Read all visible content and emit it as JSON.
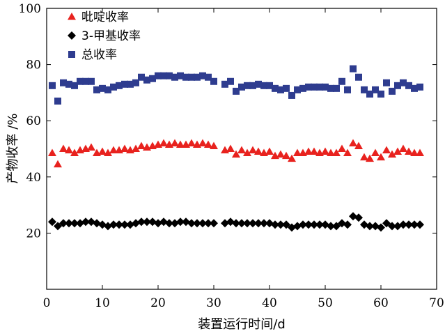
{
  "chart_data": {
    "type": "scatter",
    "xlabel": "装置运行时间/d",
    "ylabel": "产物收率 /%",
    "xlim": [
      0,
      70
    ],
    "ylim": [
      0,
      100
    ],
    "xticks": [
      0,
      10,
      20,
      30,
      40,
      50,
      60,
      70
    ],
    "yticks": [
      20,
      40,
      60,
      80,
      100
    ],
    "grid": false,
    "legend_position": "top-left",
    "series": [
      {
        "name": "吡啶收率",
        "marker": "triangle",
        "color": "#e8221e",
        "points": [
          [
            1,
            48.5
          ],
          [
            2,
            44.5
          ],
          [
            3,
            50
          ],
          [
            4,
            49.5
          ],
          [
            5,
            48.5
          ],
          [
            6,
            49.5
          ],
          [
            7,
            50
          ],
          [
            8,
            50.5
          ],
          [
            9,
            48.5
          ],
          [
            10,
            49
          ],
          [
            11,
            48.5
          ],
          [
            12,
            49.5
          ],
          [
            13,
            49.5
          ],
          [
            14,
            50
          ],
          [
            15,
            49.5
          ],
          [
            16,
            50
          ],
          [
            17,
            51
          ],
          [
            18,
            50.5
          ],
          [
            19,
            51
          ],
          [
            20,
            51.5
          ],
          [
            21,
            52
          ],
          [
            22,
            51.5
          ],
          [
            23,
            52
          ],
          [
            24,
            51.5
          ],
          [
            25,
            51.5
          ],
          [
            26,
            52
          ],
          [
            27,
            51.5
          ],
          [
            28,
            52
          ],
          [
            29,
            51.5
          ],
          [
            30,
            51
          ],
          [
            32,
            49.5
          ],
          [
            33,
            50
          ],
          [
            34,
            48
          ],
          [
            35,
            49.5
          ],
          [
            36,
            48.5
          ],
          [
            37,
            49.5
          ],
          [
            38,
            49
          ],
          [
            39,
            48.5
          ],
          [
            40,
            49
          ],
          [
            41,
            47.5
          ],
          [
            42,
            48
          ],
          [
            43,
            47.5
          ],
          [
            44,
            46.5
          ],
          [
            45,
            48.5
          ],
          [
            46,
            48.5
          ],
          [
            47,
            49
          ],
          [
            48,
            49
          ],
          [
            49,
            48.5
          ],
          [
            50,
            49
          ],
          [
            51,
            48.5
          ],
          [
            52,
            48.5
          ],
          [
            53,
            50
          ],
          [
            54,
            48.5
          ],
          [
            55,
            52
          ],
          [
            56,
            51
          ],
          [
            57,
            47
          ],
          [
            58,
            46.5
          ],
          [
            59,
            48.5
          ],
          [
            60,
            47
          ],
          [
            61,
            49.5
          ],
          [
            62,
            48
          ],
          [
            63,
            49
          ],
          [
            64,
            50
          ],
          [
            65,
            49
          ],
          [
            66,
            48.5
          ],
          [
            67,
            48.5
          ]
        ]
      },
      {
        "name": "3-甲基收率",
        "marker": "diamond",
        "color": "#000000",
        "points": [
          [
            1,
            24
          ],
          [
            2,
            22.5
          ],
          [
            3,
            23.5
          ],
          [
            4,
            23.5
          ],
          [
            5,
            23.5
          ],
          [
            6,
            23.5
          ],
          [
            7,
            24
          ],
          [
            8,
            24
          ],
          [
            9,
            23.5
          ],
          [
            10,
            23
          ],
          [
            11,
            22.5
          ],
          [
            12,
            23
          ],
          [
            13,
            23
          ],
          [
            14,
            23
          ],
          [
            15,
            23
          ],
          [
            16,
            23.5
          ],
          [
            17,
            24
          ],
          [
            18,
            24
          ],
          [
            19,
            24
          ],
          [
            20,
            23.5
          ],
          [
            21,
            24
          ],
          [
            22,
            23.5
          ],
          [
            23,
            23.5
          ],
          [
            24,
            24
          ],
          [
            25,
            24
          ],
          [
            26,
            23.5
          ],
          [
            27,
            23.5
          ],
          [
            28,
            23.5
          ],
          [
            29,
            23.5
          ],
          [
            30,
            23.5
          ],
          [
            32,
            23.5
          ],
          [
            33,
            24
          ],
          [
            34,
            23.5
          ],
          [
            35,
            23.5
          ],
          [
            36,
            23.5
          ],
          [
            37,
            23.5
          ],
          [
            38,
            23.5
          ],
          [
            39,
            23.5
          ],
          [
            40,
            23.5
          ],
          [
            41,
            23
          ],
          [
            42,
            23
          ],
          [
            43,
            23
          ],
          [
            44,
            22
          ],
          [
            45,
            22.5
          ],
          [
            46,
            23
          ],
          [
            47,
            23
          ],
          [
            48,
            23
          ],
          [
            49,
            23
          ],
          [
            50,
            23
          ],
          [
            51,
            22.5
          ],
          [
            52,
            22.5
          ],
          [
            53,
            23.5
          ],
          [
            54,
            23
          ],
          [
            55,
            26
          ],
          [
            56,
            25.5
          ],
          [
            57,
            23
          ],
          [
            58,
            22.5
          ],
          [
            59,
            22.5
          ],
          [
            60,
            22
          ],
          [
            61,
            23.5
          ],
          [
            62,
            22.5
          ],
          [
            63,
            22.5
          ],
          [
            64,
            23
          ],
          [
            65,
            23
          ],
          [
            66,
            23
          ],
          [
            67,
            23
          ]
        ]
      },
      {
        "name": "总收率",
        "marker": "square",
        "color": "#2e3c8f",
        "points": [
          [
            1,
            72.5
          ],
          [
            2,
            67
          ],
          [
            3,
            73.5
          ],
          [
            4,
            73
          ],
          [
            5,
            72.5
          ],
          [
            6,
            74
          ],
          [
            7,
            74
          ],
          [
            8,
            74
          ],
          [
            9,
            71
          ],
          [
            10,
            71.5
          ],
          [
            11,
            71
          ],
          [
            12,
            72
          ],
          [
            13,
            72.5
          ],
          [
            14,
            73
          ],
          [
            15,
            73
          ],
          [
            16,
            73.5
          ],
          [
            17,
            75.5
          ],
          [
            18,
            74.5
          ],
          [
            19,
            75
          ],
          [
            20,
            76
          ],
          [
            21,
            76
          ],
          [
            22,
            76
          ],
          [
            23,
            75.5
          ],
          [
            24,
            76
          ],
          [
            25,
            75.5
          ],
          [
            26,
            75.5
          ],
          [
            27,
            75.5
          ],
          [
            28,
            76
          ],
          [
            29,
            75.5
          ],
          [
            30,
            74
          ],
          [
            32,
            73
          ],
          [
            33,
            74
          ],
          [
            34,
            70.5
          ],
          [
            35,
            72
          ],
          [
            36,
            72.5
          ],
          [
            37,
            72.5
          ],
          [
            38,
            73
          ],
          [
            39,
            72.5
          ],
          [
            40,
            72.5
          ],
          [
            41,
            71.5
          ],
          [
            42,
            71
          ],
          [
            43,
            71.5
          ],
          [
            44,
            69
          ],
          [
            45,
            71
          ],
          [
            46,
            71.5
          ],
          [
            47,
            72
          ],
          [
            48,
            72
          ],
          [
            49,
            72
          ],
          [
            50,
            72
          ],
          [
            51,
            71.5
          ],
          [
            52,
            71.5
          ],
          [
            53,
            74
          ],
          [
            54,
            71
          ],
          [
            55,
            78.5
          ],
          [
            56,
            75.5
          ],
          [
            57,
            71
          ],
          [
            58,
            69.5
          ],
          [
            59,
            71
          ],
          [
            60,
            69.5
          ],
          [
            61,
            73.5
          ],
          [
            62,
            70.5
          ],
          [
            63,
            72.5
          ],
          [
            64,
            73.5
          ],
          [
            65,
            72.5
          ],
          [
            66,
            71.5
          ],
          [
            67,
            72
          ]
        ]
      }
    ]
  }
}
